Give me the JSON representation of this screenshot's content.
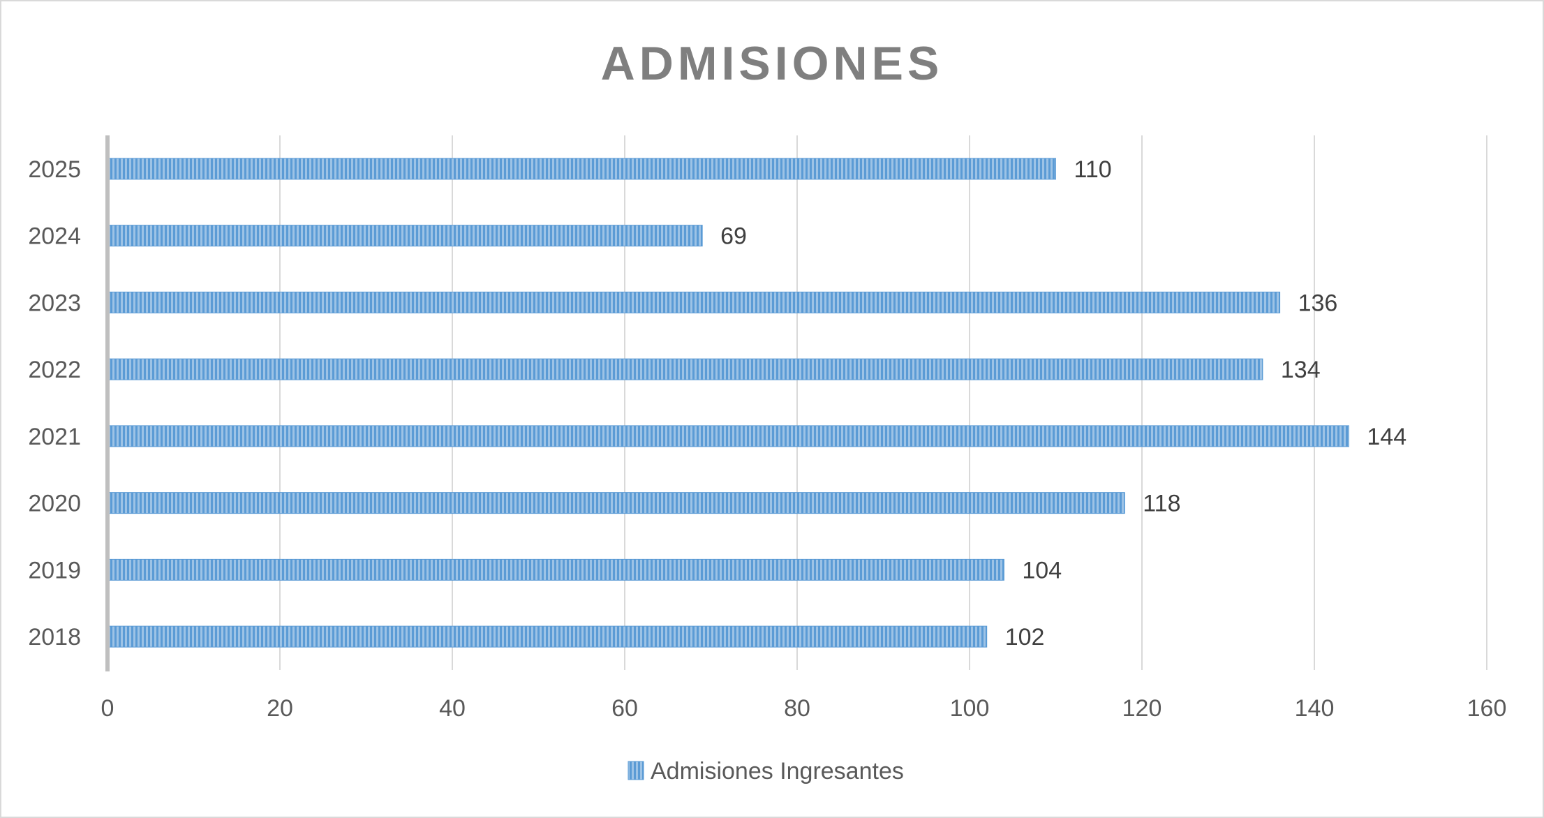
{
  "chart_data": {
    "type": "bar",
    "orientation": "horizontal",
    "title": "ADMISIONES",
    "categories": [
      "2018",
      "2019",
      "2020",
      "2021",
      "2022",
      "2023",
      "2024",
      "2025"
    ],
    "series": [
      {
        "name": "Admisiones Ingresantes",
        "values": [
          102,
          104,
          118,
          144,
          134,
          136,
          69,
          110
        ],
        "color": "#5b9bd5"
      }
    ],
    "xlim": [
      0,
      160
    ],
    "x_ticks": [
      0,
      20,
      40,
      60,
      80,
      100,
      120,
      140,
      160
    ],
    "grid": true,
    "legend_position": "bottom",
    "data_labels": true
  }
}
